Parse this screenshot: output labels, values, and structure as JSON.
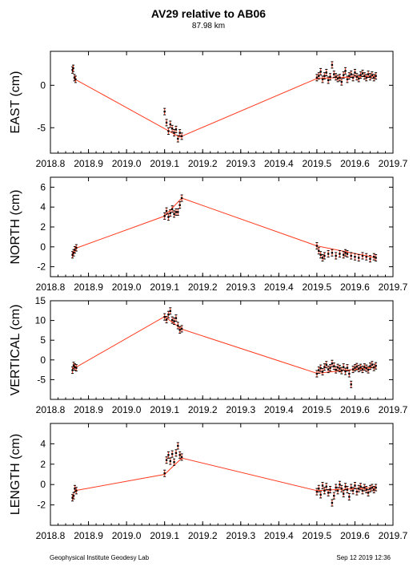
{
  "header": {
    "title": "AV29 relative to AB06",
    "subtitle": "87.98 km"
  },
  "footer": {
    "left": "Geophysical Institute Geodesy Lab",
    "right": "Sep 12 2019 12:36"
  },
  "colors": {
    "trend_line": "#ff3b1f",
    "error_bar": "#ff3b1f",
    "point": "#000000",
    "frame": "#000000"
  },
  "chart_data": [
    {
      "type": "scatter",
      "ylabel": "EAST (cm)",
      "xlim": [
        2018.8,
        2019.7
      ],
      "ylim": [
        -8,
        4
      ],
      "xticks": [
        "2018.8",
        "2018.9",
        "2019.0",
        "2019.1",
        "2019.2",
        "2019.3",
        "2019.4",
        "2019.5",
        "2019.6",
        "2019.7"
      ],
      "yticks": [
        -5,
        0
      ],
      "trend_line": [
        [
          2018.865,
          0.7
        ],
        [
          2019.14,
          -6.1
        ],
        [
          2019.5,
          0.8
        ],
        [
          2019.655,
          1.1
        ]
      ],
      "points": [
        [
          2018.858,
          1.8
        ],
        [
          2018.86,
          2.0
        ],
        [
          2018.863,
          0.9
        ],
        [
          2018.866,
          0.7
        ],
        [
          2019.1,
          -3.1
        ],
        [
          2019.105,
          -4.4
        ],
        [
          2019.11,
          -5.4
        ],
        [
          2019.115,
          -4.6
        ],
        [
          2019.12,
          -5.1
        ],
        [
          2019.125,
          -5.6
        ],
        [
          2019.13,
          -5.2
        ],
        [
          2019.135,
          -6.3
        ],
        [
          2019.14,
          -5.6
        ],
        [
          2019.145,
          -6.0
        ],
        [
          2019.5,
          0.9
        ],
        [
          2019.505,
          1.1
        ],
        [
          2019.51,
          1.6
        ],
        [
          2019.515,
          0.7
        ],
        [
          2019.52,
          1.1
        ],
        [
          2019.525,
          1.5
        ],
        [
          2019.53,
          0.6
        ],
        [
          2019.535,
          1.0
        ],
        [
          2019.54,
          2.4
        ],
        [
          2019.545,
          1.3
        ],
        [
          2019.55,
          1.0
        ],
        [
          2019.555,
          0.8
        ],
        [
          2019.56,
          0.9
        ],
        [
          2019.565,
          0.4
        ],
        [
          2019.57,
          1.2
        ],
        [
          2019.575,
          1.7
        ],
        [
          2019.58,
          0.7
        ],
        [
          2019.585,
          1.1
        ],
        [
          2019.59,
          1.3
        ],
        [
          2019.595,
          0.9
        ],
        [
          2019.6,
          1.5
        ],
        [
          2019.605,
          1.0
        ],
        [
          2019.61,
          0.8
        ],
        [
          2019.615,
          1.2
        ],
        [
          2019.62,
          1.4
        ],
        [
          2019.625,
          1.1
        ],
        [
          2019.63,
          0.9
        ],
        [
          2019.635,
          1.3
        ],
        [
          2019.64,
          1.0
        ],
        [
          2019.645,
          1.2
        ],
        [
          2019.65,
          0.9
        ],
        [
          2019.655,
          1.1
        ]
      ]
    },
    {
      "type": "scatter",
      "ylabel": "NORTH (cm)",
      "xlim": [
        2018.8,
        2019.7
      ],
      "ylim": [
        -3,
        7
      ],
      "xticks": [
        "2018.8",
        "2018.9",
        "2019.0",
        "2019.1",
        "2019.2",
        "2019.3",
        "2019.4",
        "2019.5",
        "2019.6",
        "2019.7"
      ],
      "yticks": [
        -2,
        0,
        2,
        4,
        6
      ],
      "trend_line": [
        [
          2018.87,
          -0.1
        ],
        [
          2019.1,
          3.1
        ],
        [
          2019.145,
          4.9
        ],
        [
          2019.5,
          0.1
        ],
        [
          2019.655,
          -1.1
        ]
      ],
      "points": [
        [
          2018.858,
          -0.8
        ],
        [
          2018.861,
          -0.6
        ],
        [
          2018.864,
          -0.3
        ],
        [
          2018.868,
          -0.1
        ],
        [
          2019.1,
          3.1
        ],
        [
          2019.105,
          3.6
        ],
        [
          2019.11,
          3.0
        ],
        [
          2019.115,
          3.4
        ],
        [
          2019.12,
          3.8
        ],
        [
          2019.125,
          3.3
        ],
        [
          2019.13,
          3.5
        ],
        [
          2019.135,
          3.5
        ],
        [
          2019.14,
          4.2
        ],
        [
          2019.145,
          4.9
        ],
        [
          2019.5,
          0.1
        ],
        [
          2019.505,
          -0.4
        ],
        [
          2019.51,
          -0.8
        ],
        [
          2019.515,
          -1.1
        ],
        [
          2019.52,
          -0.9
        ],
        [
          2019.53,
          -0.7
        ],
        [
          2019.54,
          -0.6
        ],
        [
          2019.55,
          -0.9
        ],
        [
          2019.56,
          -0.7
        ],
        [
          2019.57,
          -0.8
        ],
        [
          2019.575,
          -0.6
        ],
        [
          2019.58,
          -0.7
        ],
        [
          2019.59,
          -0.9
        ],
        [
          2019.6,
          -1.0
        ],
        [
          2019.61,
          -1.1
        ],
        [
          2019.62,
          -0.9
        ],
        [
          2019.63,
          -1.0
        ],
        [
          2019.64,
          -1.2
        ],
        [
          2019.65,
          -1.0
        ],
        [
          2019.655,
          -1.1
        ]
      ]
    },
    {
      "type": "scatter",
      "ylabel": "VERTICAL (cm)",
      "xlim": [
        2018.8,
        2019.7
      ],
      "ylim": [
        -10,
        15
      ],
      "xticks": [
        "2018.8",
        "2018.9",
        "2019.0",
        "2019.1",
        "2019.2",
        "2019.3",
        "2019.4",
        "2019.5",
        "2019.6",
        "2019.7"
      ],
      "yticks": [
        -5,
        0,
        5,
        10,
        15
      ],
      "trend_line": [
        [
          2018.865,
          -2.0
        ],
        [
          2019.1,
          11.0
        ],
        [
          2019.145,
          7.8
        ],
        [
          2019.5,
          -3.4
        ],
        [
          2019.655,
          -1.8
        ]
      ],
      "points": [
        [
          2018.858,
          -2.6
        ],
        [
          2018.861,
          -1.4
        ],
        [
          2018.864,
          -1.8
        ],
        [
          2018.868,
          -2.0
        ],
        [
          2019.1,
          10.9
        ],
        [
          2019.105,
          10.2
        ],
        [
          2019.11,
          11.5
        ],
        [
          2019.115,
          12.4
        ],
        [
          2019.12,
          10.1
        ],
        [
          2019.125,
          9.8
        ],
        [
          2019.13,
          10.6
        ],
        [
          2019.135,
          8.7
        ],
        [
          2019.14,
          7.6
        ],
        [
          2019.145,
          7.9
        ],
        [
          2019.5,
          -3.5
        ],
        [
          2019.505,
          -2.6
        ],
        [
          2019.51,
          -2.1
        ],
        [
          2019.515,
          -3.0
        ],
        [
          2019.52,
          -1.8
        ],
        [
          2019.525,
          -1.2
        ],
        [
          2019.53,
          -2.4
        ],
        [
          2019.535,
          -2.0
        ],
        [
          2019.54,
          -0.9
        ],
        [
          2019.545,
          -1.6
        ],
        [
          2019.55,
          -2.5
        ],
        [
          2019.555,
          -1.9
        ],
        [
          2019.56,
          -2.2
        ],
        [
          2019.565,
          -2.7
        ],
        [
          2019.57,
          -1.8
        ],
        [
          2019.575,
          -2.9
        ],
        [
          2019.58,
          -2.0
        ],
        [
          2019.585,
          -3.5
        ],
        [
          2019.59,
          -6.2
        ],
        [
          2019.595,
          -2.4
        ],
        [
          2019.6,
          -2.0
        ],
        [
          2019.605,
          -1.7
        ],
        [
          2019.61,
          -2.2
        ],
        [
          2019.615,
          -1.9
        ],
        [
          2019.62,
          -2.4
        ],
        [
          2019.625,
          -1.8
        ],
        [
          2019.63,
          -2.1
        ],
        [
          2019.635,
          -2.5
        ],
        [
          2019.64,
          -1.6
        ],
        [
          2019.645,
          -1.2
        ],
        [
          2019.65,
          -1.9
        ],
        [
          2019.655,
          -1.5
        ]
      ]
    },
    {
      "type": "scatter",
      "ylabel": "LENGTH (cm)",
      "xlim": [
        2018.8,
        2019.7
      ],
      "ylim": [
        -4,
        6
      ],
      "xticks": [
        "2018.8",
        "2018.9",
        "2019.0",
        "2019.1",
        "2019.2",
        "2019.3",
        "2019.4",
        "2019.5",
        "2019.6",
        "2019.7"
      ],
      "yticks": [
        -2,
        0,
        2,
        4
      ],
      "trend_line": [
        [
          2018.865,
          -0.6
        ],
        [
          2019.1,
          1.0
        ],
        [
          2019.145,
          2.6
        ],
        [
          2019.5,
          -0.6
        ],
        [
          2019.655,
          -0.3
        ]
      ],
      "points": [
        [
          2018.858,
          -1.3
        ],
        [
          2018.861,
          -1.1
        ],
        [
          2018.864,
          -0.4
        ],
        [
          2018.868,
          -0.6
        ],
        [
          2019.1,
          1.1
        ],
        [
          2019.105,
          2.4
        ],
        [
          2019.11,
          2.9
        ],
        [
          2019.115,
          2.3
        ],
        [
          2019.12,
          3.0
        ],
        [
          2019.125,
          2.2
        ],
        [
          2019.13,
          3.1
        ],
        [
          2019.135,
          3.8
        ],
        [
          2019.14,
          2.9
        ],
        [
          2019.145,
          2.7
        ],
        [
          2019.5,
          -0.7
        ],
        [
          2019.505,
          -0.4
        ],
        [
          2019.51,
          -1.0
        ],
        [
          2019.515,
          -0.1
        ],
        [
          2019.52,
          -0.6
        ],
        [
          2019.525,
          -0.2
        ],
        [
          2019.53,
          -0.8
        ],
        [
          2019.535,
          -0.5
        ],
        [
          2019.54,
          -1.8
        ],
        [
          2019.545,
          -1.1
        ],
        [
          2019.55,
          -0.3
        ],
        [
          2019.555,
          -0.6
        ],
        [
          2019.56,
          0.0
        ],
        [
          2019.565,
          -0.4
        ],
        [
          2019.57,
          -0.9
        ],
        [
          2019.575,
          -0.2
        ],
        [
          2019.58,
          -0.5
        ],
        [
          2019.585,
          -1.2
        ],
        [
          2019.59,
          -0.3
        ],
        [
          2019.595,
          -0.6
        ],
        [
          2019.6,
          -0.1
        ],
        [
          2019.605,
          -0.7
        ],
        [
          2019.61,
          -0.4
        ],
        [
          2019.615,
          -0.2
        ],
        [
          2019.62,
          -0.6
        ],
        [
          2019.625,
          -0.3
        ],
        [
          2019.63,
          -0.5
        ],
        [
          2019.635,
          -0.8
        ],
        [
          2019.64,
          -0.4
        ],
        [
          2019.645,
          -0.3
        ],
        [
          2019.65,
          -0.5
        ],
        [
          2019.655,
          -0.3
        ]
      ]
    }
  ]
}
